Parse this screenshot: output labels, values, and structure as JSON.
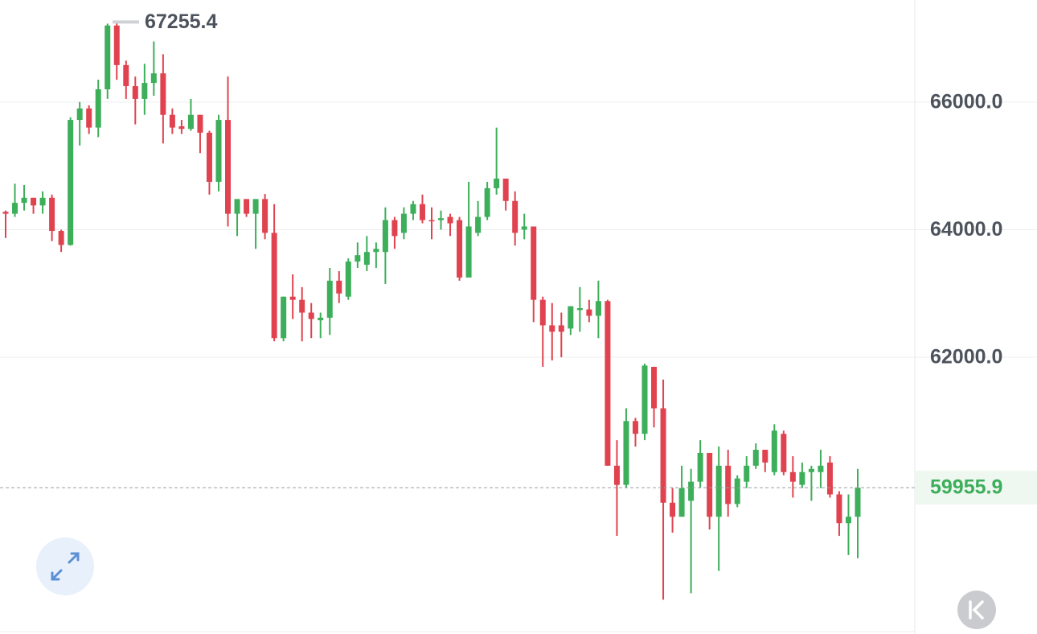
{
  "chart_data": {
    "type": "candlestick",
    "open": [
      64280,
      64250,
      64420,
      64500,
      64380,
      64500,
      63980,
      63760,
      65720,
      65900,
      65600,
      66200,
      67200,
      66580,
      66250,
      66050,
      66300,
      66450,
      65800,
      65620,
      65580,
      65800,
      65520,
      64750,
      65720,
      64250,
      64480,
      64250,
      64480,
      63950,
      62300,
      62950,
      62900,
      62700,
      62580,
      62620,
      63200,
      62950,
      63500,
      63450,
      63650,
      63650,
      64150,
      63950,
      64250,
      64400,
      64150,
      64150,
      64200,
      64150,
      63250,
      63950,
      64200,
      64650,
      64800,
      64450,
      64000,
      64050,
      62900,
      62500,
      62500,
      62450,
      62740,
      62750,
      62650,
      62880,
      60300,
      60000,
      61000,
      60800,
      61850,
      61200,
      59720,
      59500,
      59750,
      60050,
      60500,
      59500,
      60300,
      59700,
      60050,
      60300,
      60550,
      60200,
      60800,
      60200,
      60000,
      60200,
      60200,
      60350,
      59850,
      59400,
      59500
    ],
    "high": [
      64300,
      64720,
      64700,
      64500,
      64600,
      64550,
      64000,
      65760,
      66000,
      65950,
      66350,
      67230,
      67255.4,
      66650,
      66400,
      66600,
      66950,
      66750,
      65900,
      65720,
      66050,
      65800,
      65550,
      65800,
      66400,
      64480,
      64480,
      64480,
      64560,
      64400,
      62950,
      63300,
      63100,
      62850,
      62700,
      63400,
      63350,
      63550,
      63800,
      63900,
      63800,
      64350,
      64200,
      64350,
      64450,
      64550,
      64350,
      64300,
      64250,
      64200,
      64750,
      64450,
      64750,
      65600,
      64800,
      64600,
      64250,
      64050,
      62950,
      62850,
      62700,
      62800,
      63100,
      62900,
      63200,
      62900,
      60700,
      61200,
      61050,
      61900,
      61850,
      61650,
      59950,
      60300,
      60250,
      60700,
      60500,
      60600,
      60550,
      60150,
      60450,
      60650,
      60550,
      60950,
      60850,
      60450,
      60350,
      60300,
      60550,
      60450,
      59900,
      59850,
      60250
    ],
    "low": [
      63870,
      64200,
      64300,
      64250,
      64250,
      63820,
      63650,
      63750,
      65320,
      65500,
      65450,
      66050,
      66350,
      66050,
      65650,
      65800,
      66100,
      65350,
      65500,
      65500,
      65550,
      65200,
      64550,
      64600,
      64050,
      63900,
      64200,
      63700,
      63850,
      62250,
      62250,
      62600,
      62250,
      62300,
      62300,
      62350,
      62850,
      62900,
      63400,
      63350,
      63400,
      63150,
      63700,
      63850,
      64150,
      64100,
      63850,
      64000,
      63900,
      63200,
      63250,
      63900,
      64150,
      64550,
      64300,
      63750,
      63850,
      62550,
      61850,
      61950,
      62000,
      62350,
      62400,
      62550,
      62300,
      60300,
      59200,
      59950,
      60600,
      60700,
      60900,
      58200,
      59250,
      59500,
      58300,
      59950,
      59300,
      58650,
      59500,
      59650,
      59950,
      60250,
      60200,
      60150,
      60150,
      59800,
      59950,
      59750,
      59950,
      59800,
      59200,
      58900,
      58850
    ],
    "close": [
      64250,
      64420,
      64500,
      64380,
      64500,
      63980,
      63760,
      65720,
      65900,
      65600,
      66200,
      67200,
      66580,
      66250,
      66050,
      66300,
      66450,
      65800,
      65600,
      65580,
      65800,
      65520,
      64750,
      65720,
      64250,
      64480,
      64250,
      64480,
      63950,
      62300,
      62950,
      62900,
      62700,
      62600,
      62620,
      63200,
      63000,
      63500,
      63600,
      63650,
      63700,
      64150,
      63900,
      64250,
      64400,
      64150,
      64130,
      64180,
      64100,
      63250,
      64050,
      64200,
      64650,
      64800,
      64450,
      63950,
      64050,
      62900,
      62500,
      62400,
      62400,
      62800,
      62770,
      62650,
      62880,
      60300,
      60000,
      61000,
      60800,
      61870,
      61200,
      59720,
      59500,
      59950,
      60050,
      60500,
      59500,
      60300,
      59700,
      60100,
      60300,
      60550,
      60350,
      60850,
      60200,
      60050,
      60200,
      60250,
      60300,
      59850,
      59400,
      59500,
      59955.9
    ],
    "up_color": "#3dae5a",
    "down_color": "#e0434f",
    "ylim": [
      57700,
      67600
    ],
    "yticks": [
      {
        "value": 62000,
        "label": "62000.0"
      },
      {
        "value": 64000,
        "label": "64000.0"
      },
      {
        "value": 66000,
        "label": "66000.0"
      }
    ],
    "grid": true,
    "high_marker": 67255.4,
    "last_price": 59955.9
  }
}
